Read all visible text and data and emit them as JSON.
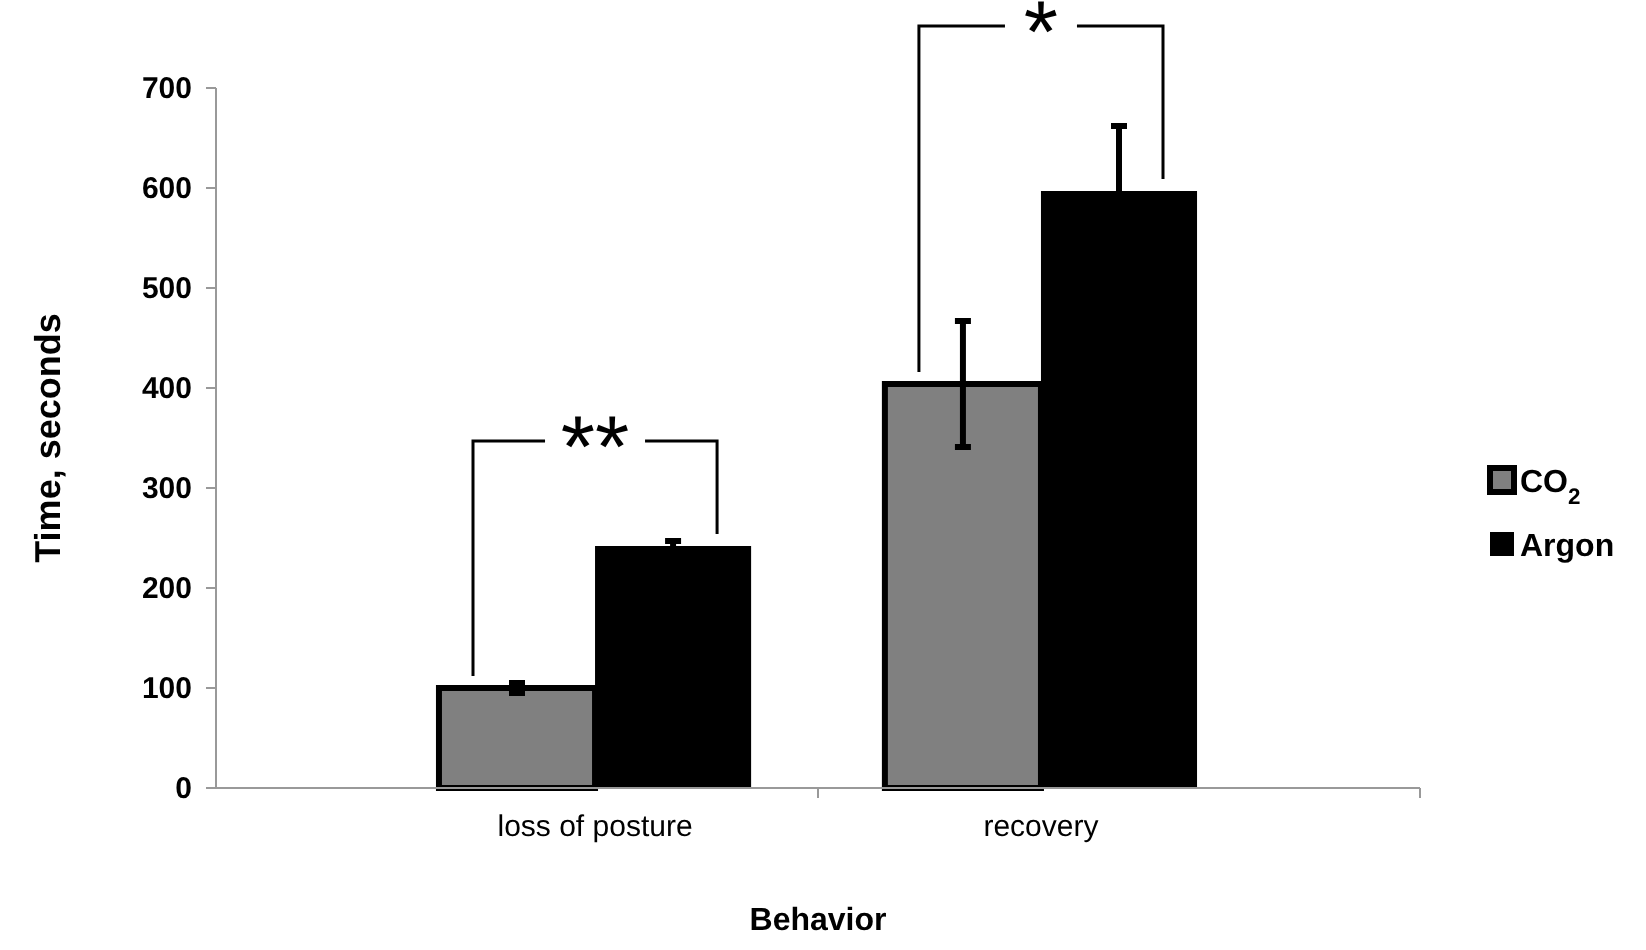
{
  "chart_data": {
    "type": "bar",
    "xlabel": "Behavior",
    "ylabel": "Time, seconds",
    "categories": [
      "loss of posture",
      "recovery"
    ],
    "series": [
      {
        "name": "CO$_{2}$",
        "color": "#808080",
        "values": [
          100,
          404
        ],
        "errors": [
          5,
          63
        ]
      },
      {
        "name": "Argon",
        "color": "#000000",
        "values": [
          242,
          597
        ],
        "errors": [
          5,
          65
        ]
      }
    ],
    "ylim": [
      0,
      700
    ],
    "yticks": [
      0,
      100,
      200,
      300,
      400,
      500,
      600,
      700
    ],
    "grid": false,
    "legend": "right",
    "annotations": [
      "**",
      "*"
    ]
  }
}
